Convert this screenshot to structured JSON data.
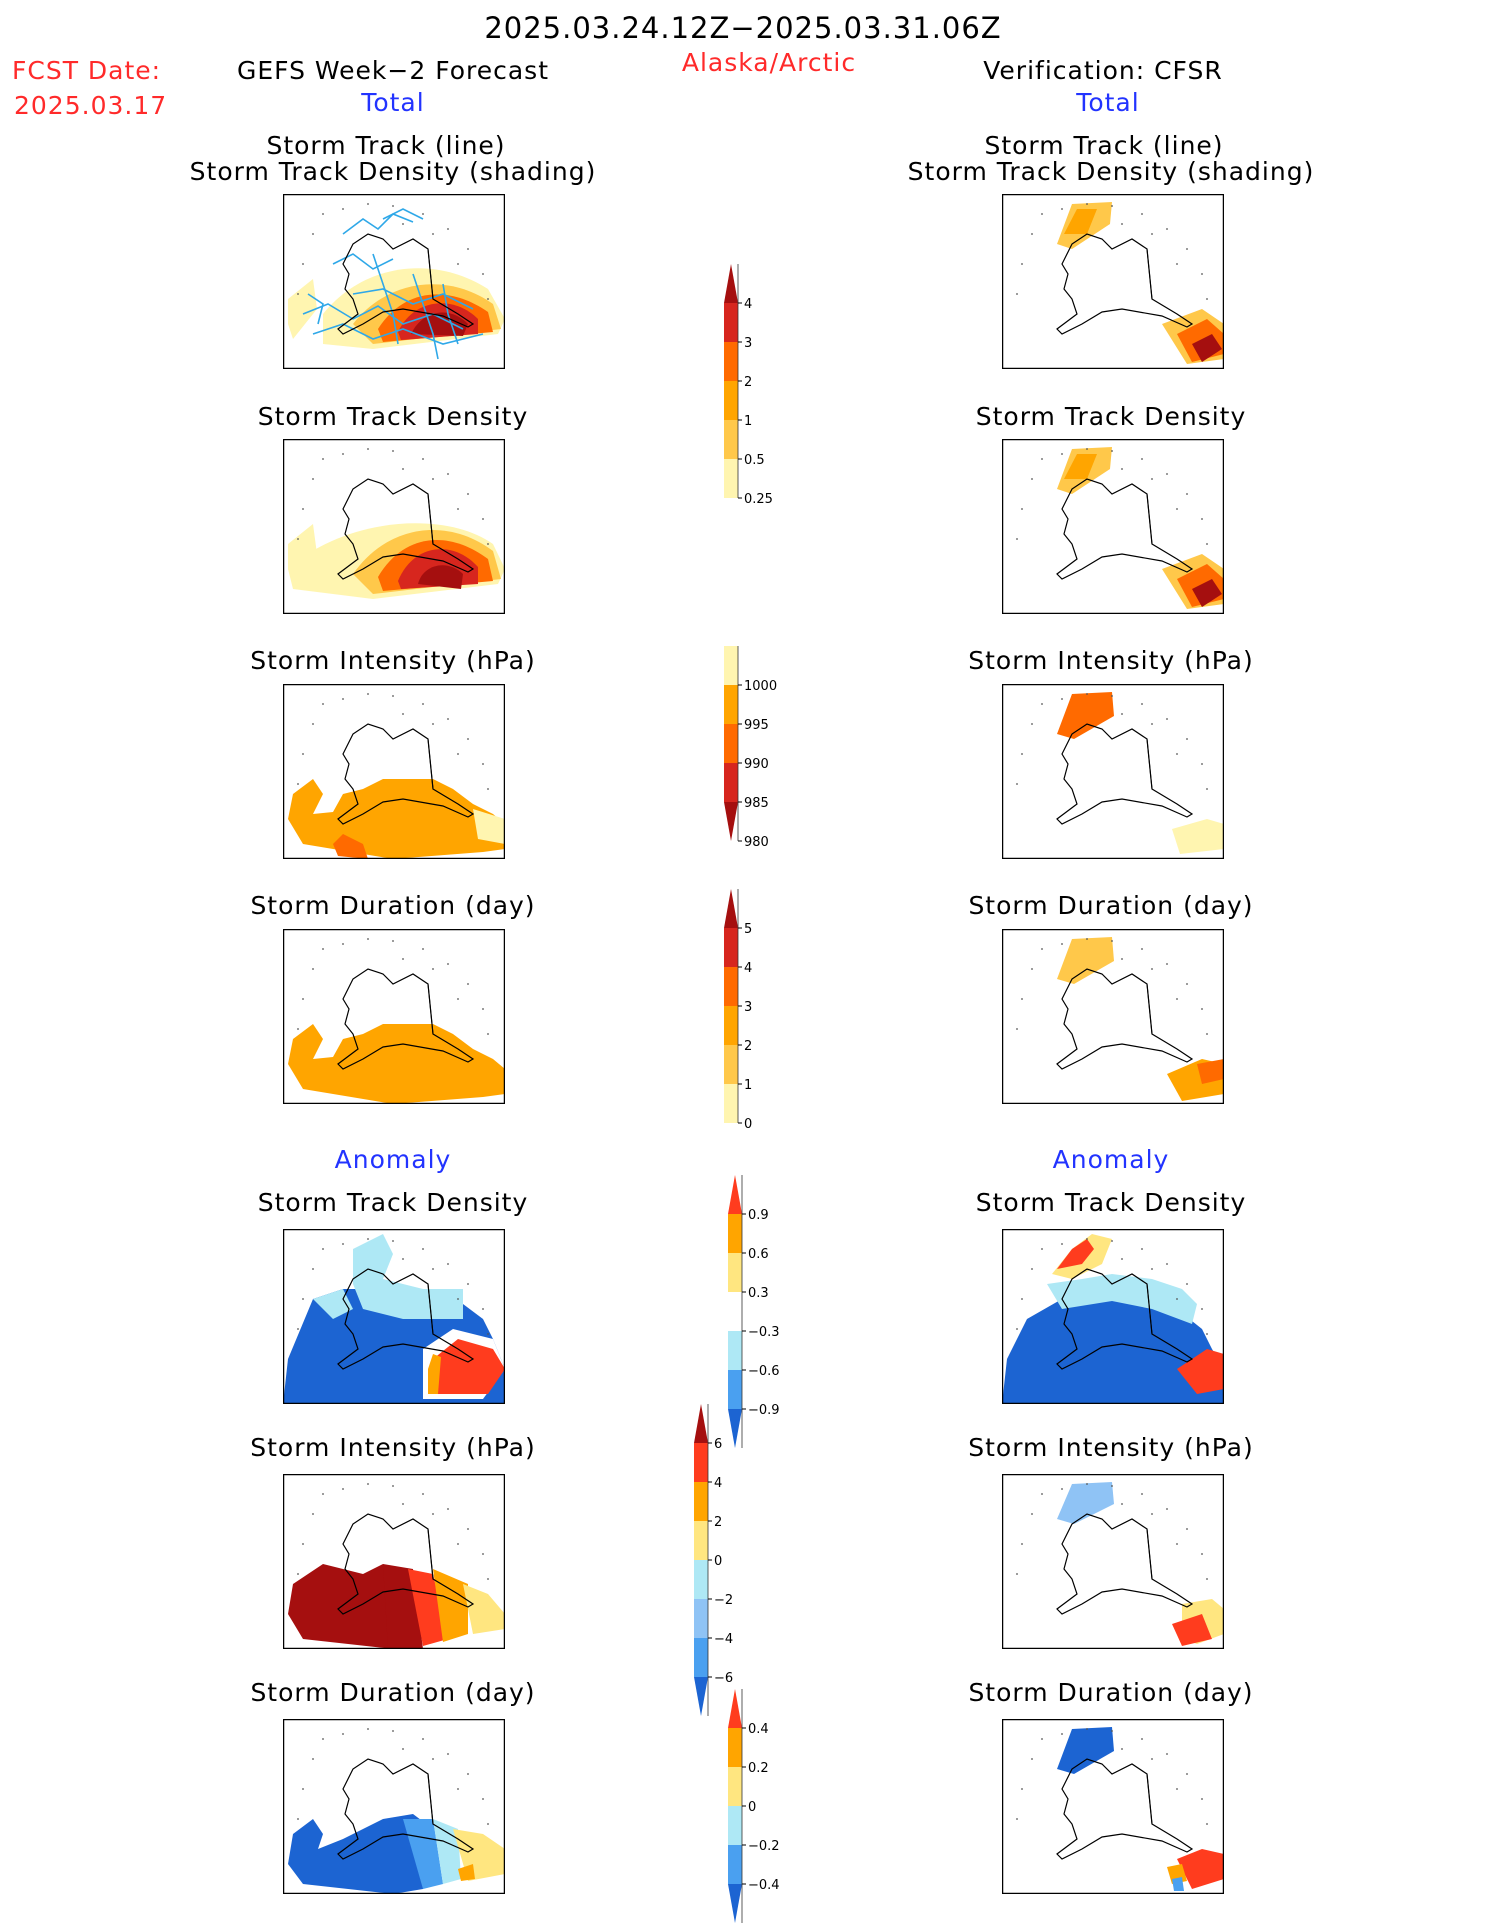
{
  "header": {
    "date_range": "2025.03.24.12Z−2025.03.31.06Z",
    "fcst_label": "FCST Date:",
    "fcst_date": "2025.03.17",
    "left_title": "GEFS Week−2 Forecast",
    "region": "Alaska/Arctic",
    "right_title": "Verification: CFSR",
    "total_label": "Total",
    "anomaly_label": "Anomaly"
  },
  "panel_titles": {
    "track_line": "Storm Track (line)",
    "track_shading": "Storm Track Density (shading)",
    "density": "Storm Track Density",
    "intensity": "Storm Intensity (hPa)",
    "duration": "Storm Duration (day)"
  },
  "colorbars": {
    "density_total": {
      "labels": [
        "4",
        "3",
        "2",
        "1",
        "0.5",
        "0.25"
      ],
      "colors": [
        "#a50f0f",
        "#d7261e",
        "#ff6a00",
        "#ffa500",
        "#ffc84a",
        "#fff5b0"
      ]
    },
    "intensity_total": {
      "labels": [
        "1000",
        "995",
        "990",
        "985",
        "980"
      ],
      "colors": [
        "#fff5b0",
        "#ffa500",
        "#ff6a00",
        "#d7261e",
        "#a50f0f"
      ]
    },
    "duration_total": {
      "labels": [
        "5",
        "4",
        "3",
        "2",
        "1",
        "0"
      ],
      "colors": [
        "#a50f0f",
        "#d7261e",
        "#ff6a00",
        "#ffa500",
        "#ffc84a",
        "#fff5b0"
      ]
    },
    "density_anom": {
      "labels": [
        "0.9",
        "0.6",
        "0.3",
        "−0.3",
        "−0.6",
        "−0.9"
      ],
      "colors": [
        "#ff3c1e",
        "#ffa500",
        "#ffe680",
        "#ffffff",
        "#aee8f5",
        "#4aa0f0",
        "#1c64d2"
      ]
    },
    "intensity_anom": {
      "labels": [
        "6",
        "4",
        "2",
        "0",
        "−2",
        "−4",
        "−6"
      ],
      "colors": [
        "#a50f0f",
        "#ff3c1e",
        "#ffa500",
        "#ffe680",
        "#aee8f5",
        "#8fc3f5",
        "#4aa0f0",
        "#1c64d2"
      ]
    },
    "duration_anom": {
      "labels": [
        "0.4",
        "0.2",
        "0",
        "−0.2",
        "−0.4"
      ],
      "colors": [
        "#ff3c1e",
        "#ffa500",
        "#ffe680",
        "#aee8f5",
        "#4aa0f0",
        "#1c64d2"
      ]
    }
  },
  "colors": {
    "header_red": "#ff2a2a",
    "header_blue": "#2233ff",
    "storm_track_line": "#2fa8e8"
  }
}
